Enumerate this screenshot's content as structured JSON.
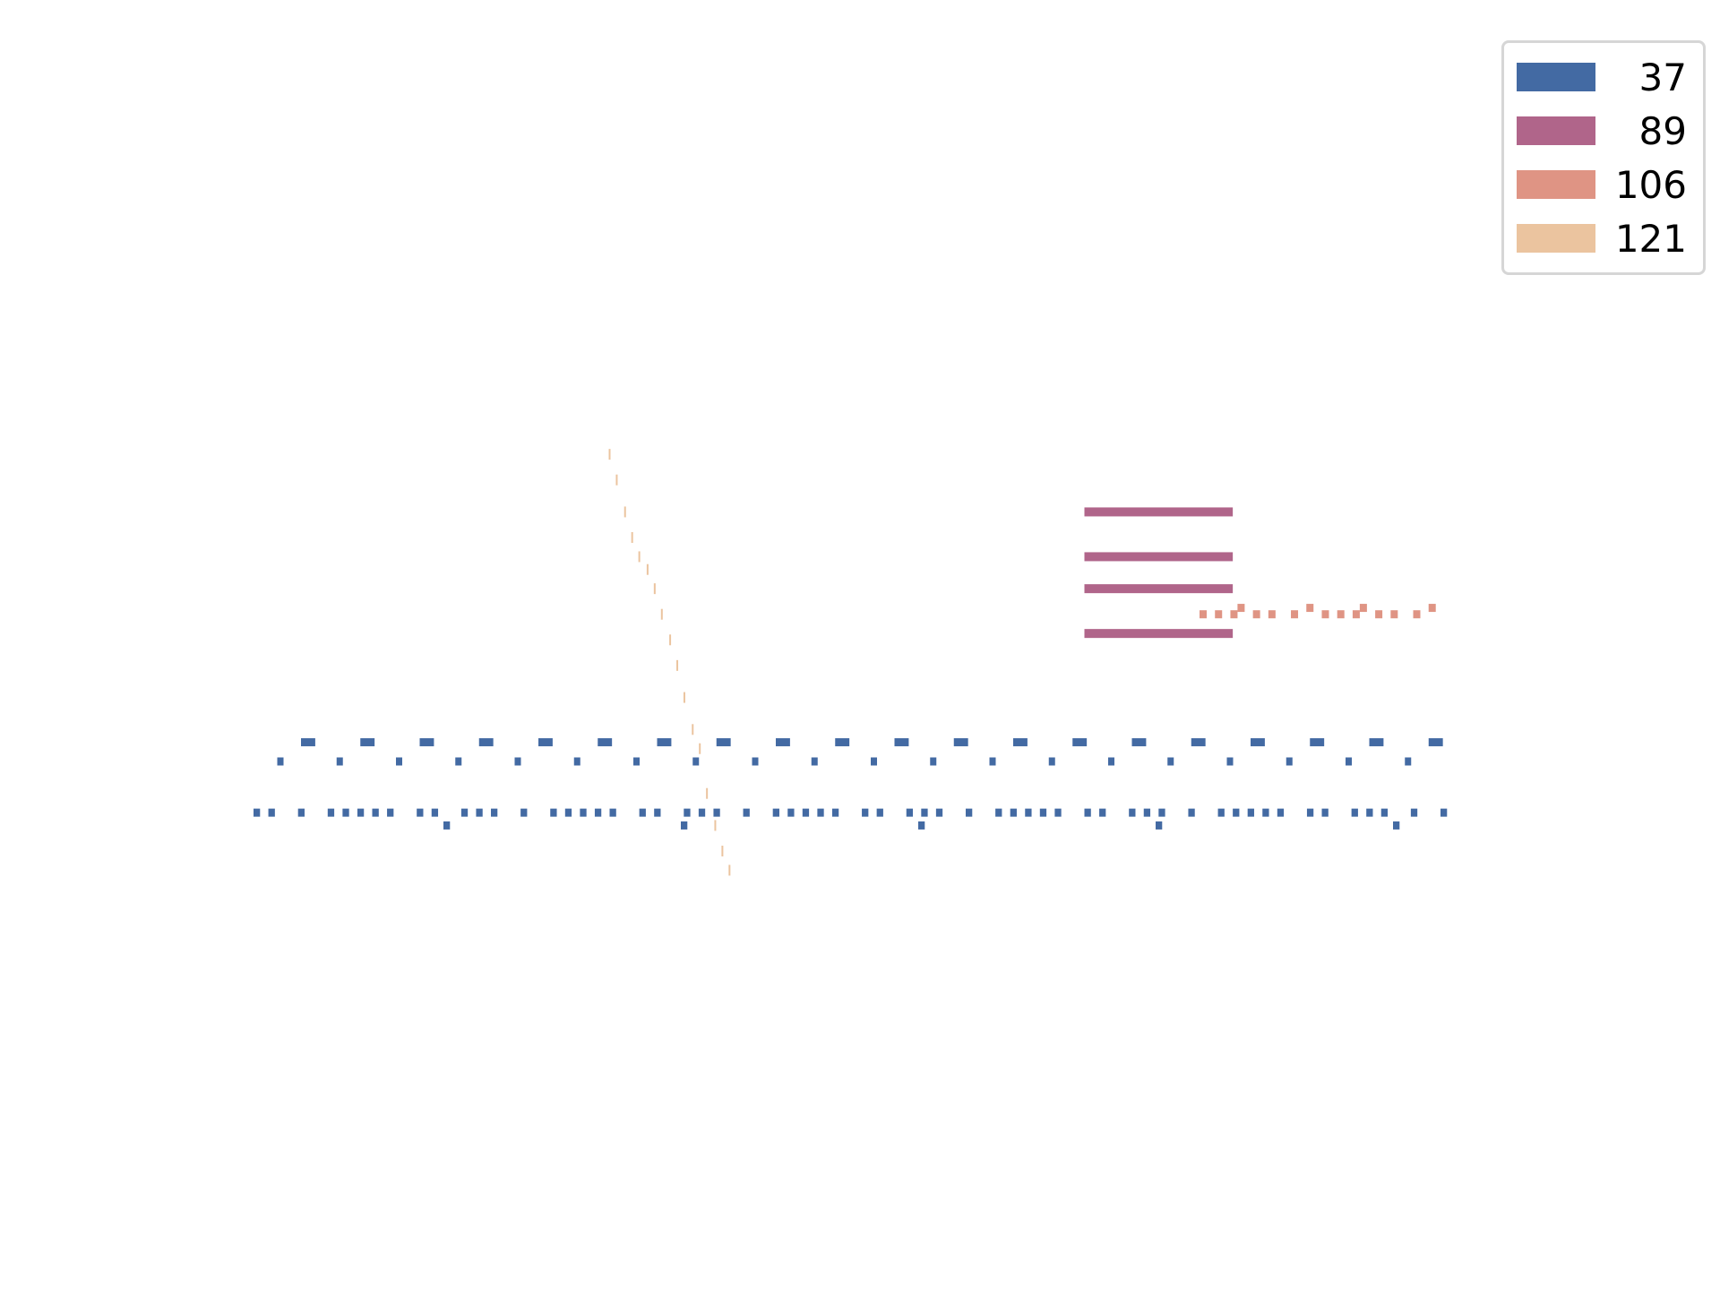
{
  "chart_data": {
    "type": "scatter",
    "mark_style": "horizontal rug / tick segments",
    "title": "",
    "xlabel": "",
    "ylabel": "",
    "axes_visible": false,
    "grid": false,
    "legend_placement": "top-right",
    "xlim": [
      0,
      100
    ],
    "ylim": [
      -10,
      60
    ],
    "series": [
      {
        "name": "37",
        "color": "#436aa3",
        "rows": [
          {
            "y": 23.0,
            "x_start": 4.0,
            "x_end": 100,
            "step": 10,
            "run": 1.2
          },
          {
            "y": 23.0,
            "x_start": 9.0,
            "x_end": 100,
            "step": 10,
            "run": 1.2
          },
          {
            "y": 21.5,
            "x_start": 2.0,
            "x_end": 100,
            "step": 5,
            "run": 0.4
          },
          {
            "y": 17.5,
            "x_start": 0.0,
            "x_end": 100,
            "step": 1.25,
            "run": 0.55,
            "pattern": [
              1,
              1,
              0,
              1,
              0,
              1,
              1,
              1,
              1,
              1,
              0,
              1,
              1,
              0,
              1
            ]
          },
          {
            "y": 16.5,
            "x_start": 16.0,
            "x_end": 100,
            "step": 20,
            "run": 0.55
          }
        ]
      },
      {
        "name": "89",
        "color": "#b0658a",
        "segments": [
          {
            "y": 41.0,
            "x0": 70.0,
            "x1": 82.5
          },
          {
            "y": 37.5,
            "x0": 70.0,
            "x1": 82.5
          },
          {
            "y": 35.0,
            "x0": 70.0,
            "x1": 82.5
          },
          {
            "y": 31.5,
            "x0": 70.0,
            "x1": 82.5
          }
        ]
      },
      {
        "name": "106",
        "color": "#df9484",
        "points": [
          {
            "x": 80.0,
            "y": 33.0
          },
          {
            "x": 81.3,
            "y": 33.0
          },
          {
            "x": 82.6,
            "y": 33.0
          },
          {
            "x": 83.2,
            "y": 33.5
          },
          {
            "x": 84.5,
            "y": 33.0
          },
          {
            "x": 85.8,
            "y": 33.0
          },
          {
            "x": 87.7,
            "y": 33.0
          },
          {
            "x": 89.0,
            "y": 33.5
          },
          {
            "x": 90.3,
            "y": 33.0
          },
          {
            "x": 91.6,
            "y": 33.0
          },
          {
            "x": 92.9,
            "y": 33.0
          },
          {
            "x": 93.5,
            "y": 33.5
          },
          {
            "x": 94.8,
            "y": 33.0
          },
          {
            "x": 96.1,
            "y": 33.0
          },
          {
            "x": 98.0,
            "y": 33.0
          },
          {
            "x": 99.3,
            "y": 33.5
          }
        ]
      },
      {
        "name": "121",
        "color": "#ebc49f",
        "points": [
          {
            "x": 30.0,
            "y": 45.5
          },
          {
            "x": 30.6,
            "y": 43.5
          },
          {
            "x": 31.3,
            "y": 41.0
          },
          {
            "x": 31.9,
            "y": 39.0
          },
          {
            "x": 32.5,
            "y": 37.5
          },
          {
            "x": 33.2,
            "y": 36.5
          },
          {
            "x": 33.8,
            "y": 35.0
          },
          {
            "x": 34.4,
            "y": 33.0
          },
          {
            "x": 35.1,
            "y": 31.0
          },
          {
            "x": 35.7,
            "y": 29.0
          },
          {
            "x": 36.3,
            "y": 26.5
          },
          {
            "x": 37.0,
            "y": 24.0
          },
          {
            "x": 37.6,
            "y": 22.5
          },
          {
            "x": 38.2,
            "y": 19.0
          },
          {
            "x": 38.9,
            "y": 16.5
          },
          {
            "x": 39.5,
            "y": 14.5
          },
          {
            "x": 40.1,
            "y": 13.0
          }
        ]
      }
    ]
  },
  "legend": {
    "items": [
      {
        "label": "37",
        "color": "#436aa3"
      },
      {
        "label": "89",
        "color": "#b0658a"
      },
      {
        "label": "106",
        "color": "#df9484"
      },
      {
        "label": "121",
        "color": "#ebc49f"
      }
    ]
  }
}
